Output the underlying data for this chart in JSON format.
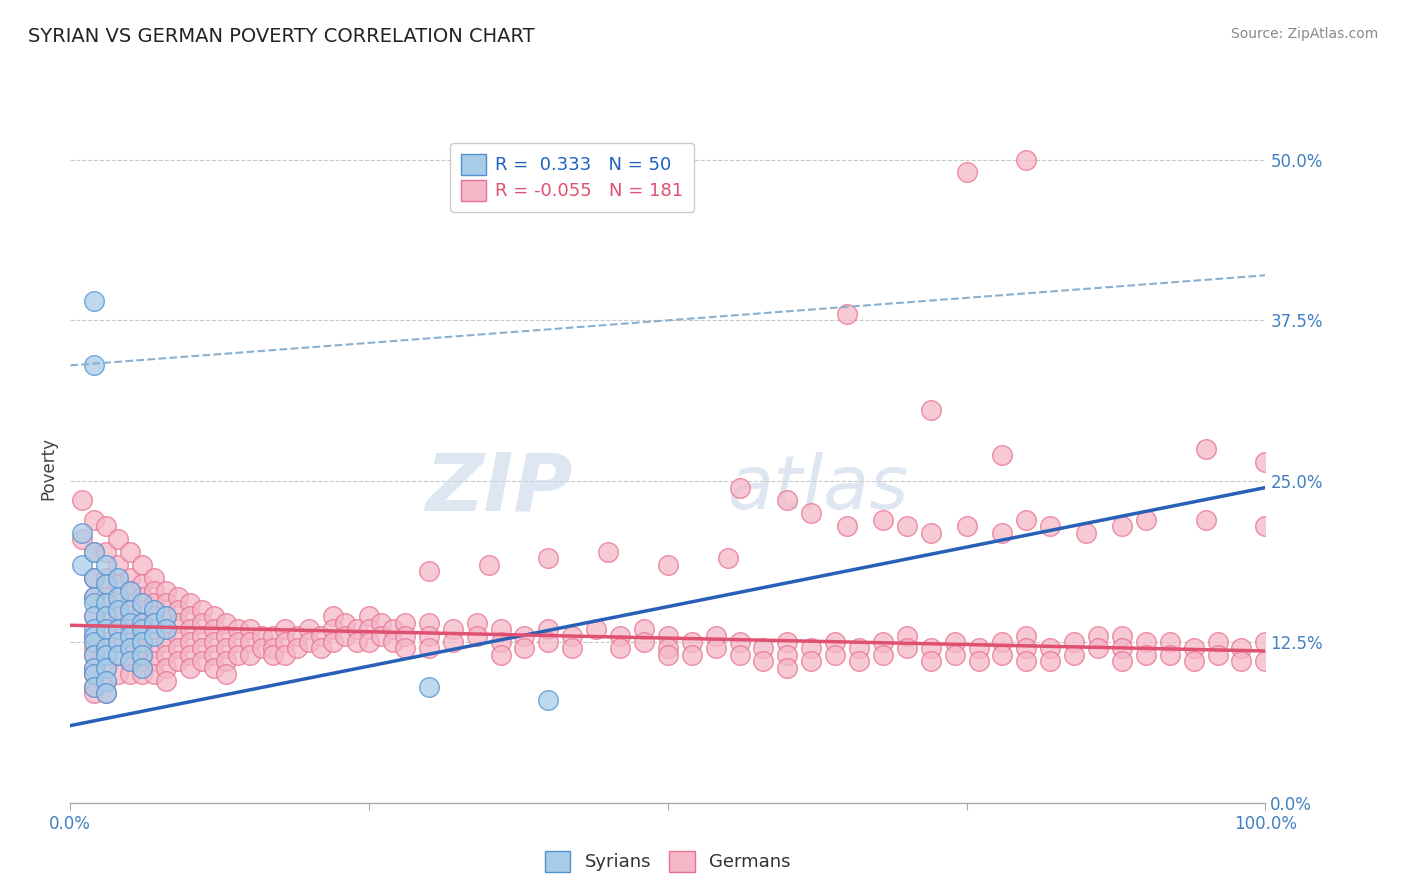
{
  "title": "SYRIAN VS GERMAN POVERTY CORRELATION CHART",
  "source": "Source: ZipAtlas.com",
  "ylabel_label": "Poverty",
  "xlim": [
    0.0,
    1.0
  ],
  "ylim": [
    0.0,
    0.52
  ],
  "syrian_color": "#a8cce8",
  "german_color": "#f4b8c8",
  "syrian_edge_color": "#5090d0",
  "german_edge_color": "#e87090",
  "syrian_line_color": "#2860b8",
  "german_line_color": "#e05070",
  "dashed_line_color": "#8ab0d0",
  "grid_color": "#c8c8c8",
  "background_color": "#ffffff",
  "r_syrian": 0.333,
  "n_syrian": 50,
  "r_german": -0.055,
  "n_german": 181,
  "watermark_zip": "ZIP",
  "watermark_atlas": "atlas",
  "y_tick_positions": [
    0.0,
    0.125,
    0.25,
    0.375,
    0.5
  ],
  "y_tick_labels": [
    "0.0%",
    "12.5%",
    "25.0%",
    "37.5%",
    "50.0%"
  ],
  "x_tick_positions": [
    0.0,
    0.25,
    0.5,
    0.75,
    1.0
  ],
  "x_tick_labels": [
    "0.0%",
    "",
    "",
    "",
    "100.0%"
  ],
  "syrian_trend_x": [
    0.0,
    1.0
  ],
  "syrian_trend_y": [
    0.06,
    0.245
  ],
  "german_trend_x": [
    0.0,
    1.0
  ],
  "german_trend_y": [
    0.138,
    0.118
  ],
  "dashed_trend_x": [
    0.0,
    1.0
  ],
  "dashed_trend_y": [
    0.34,
    0.41
  ],
  "syrian_scatter": [
    [
      0.01,
      0.21
    ],
    [
      0.01,
      0.185
    ],
    [
      0.02,
      0.195
    ],
    [
      0.02,
      0.175
    ],
    [
      0.02,
      0.16
    ],
    [
      0.02,
      0.155
    ],
    [
      0.02,
      0.145
    ],
    [
      0.02,
      0.135
    ],
    [
      0.02,
      0.13
    ],
    [
      0.02,
      0.125
    ],
    [
      0.02,
      0.115
    ],
    [
      0.02,
      0.105
    ],
    [
      0.02,
      0.1
    ],
    [
      0.02,
      0.09
    ],
    [
      0.03,
      0.185
    ],
    [
      0.03,
      0.17
    ],
    [
      0.03,
      0.155
    ],
    [
      0.03,
      0.145
    ],
    [
      0.03,
      0.135
    ],
    [
      0.03,
      0.12
    ],
    [
      0.03,
      0.115
    ],
    [
      0.03,
      0.105
    ],
    [
      0.03,
      0.095
    ],
    [
      0.03,
      0.085
    ],
    [
      0.04,
      0.175
    ],
    [
      0.04,
      0.16
    ],
    [
      0.04,
      0.15
    ],
    [
      0.04,
      0.135
    ],
    [
      0.04,
      0.125
    ],
    [
      0.04,
      0.115
    ],
    [
      0.05,
      0.165
    ],
    [
      0.05,
      0.15
    ],
    [
      0.05,
      0.14
    ],
    [
      0.05,
      0.13
    ],
    [
      0.05,
      0.12
    ],
    [
      0.05,
      0.11
    ],
    [
      0.06,
      0.155
    ],
    [
      0.06,
      0.14
    ],
    [
      0.06,
      0.135
    ],
    [
      0.06,
      0.125
    ],
    [
      0.06,
      0.115
    ],
    [
      0.06,
      0.105
    ],
    [
      0.07,
      0.15
    ],
    [
      0.07,
      0.14
    ],
    [
      0.07,
      0.13
    ],
    [
      0.08,
      0.145
    ],
    [
      0.08,
      0.135
    ],
    [
      0.3,
      0.09
    ],
    [
      0.4,
      0.08
    ],
    [
      0.02,
      0.39
    ],
    [
      0.02,
      0.34
    ]
  ],
  "german_scatter": [
    [
      0.01,
      0.235
    ],
    [
      0.01,
      0.205
    ],
    [
      0.02,
      0.22
    ],
    [
      0.02,
      0.195
    ],
    [
      0.02,
      0.175
    ],
    [
      0.02,
      0.16
    ],
    [
      0.02,
      0.145
    ],
    [
      0.02,
      0.13
    ],
    [
      0.02,
      0.12
    ],
    [
      0.02,
      0.115
    ],
    [
      0.02,
      0.105
    ],
    [
      0.02,
      0.1
    ],
    [
      0.02,
      0.09
    ],
    [
      0.02,
      0.085
    ],
    [
      0.03,
      0.215
    ],
    [
      0.03,
      0.195
    ],
    [
      0.03,
      0.175
    ],
    [
      0.03,
      0.16
    ],
    [
      0.03,
      0.145
    ],
    [
      0.03,
      0.135
    ],
    [
      0.03,
      0.125
    ],
    [
      0.03,
      0.115
    ],
    [
      0.03,
      0.105
    ],
    [
      0.03,
      0.095
    ],
    [
      0.03,
      0.085
    ],
    [
      0.04,
      0.205
    ],
    [
      0.04,
      0.185
    ],
    [
      0.04,
      0.17
    ],
    [
      0.04,
      0.155
    ],
    [
      0.04,
      0.145
    ],
    [
      0.04,
      0.135
    ],
    [
      0.04,
      0.125
    ],
    [
      0.04,
      0.115
    ],
    [
      0.04,
      0.1
    ],
    [
      0.05,
      0.195
    ],
    [
      0.05,
      0.175
    ],
    [
      0.05,
      0.165
    ],
    [
      0.05,
      0.155
    ],
    [
      0.05,
      0.145
    ],
    [
      0.05,
      0.135
    ],
    [
      0.05,
      0.12
    ],
    [
      0.05,
      0.11
    ],
    [
      0.05,
      0.1
    ],
    [
      0.06,
      0.185
    ],
    [
      0.06,
      0.17
    ],
    [
      0.06,
      0.16
    ],
    [
      0.06,
      0.15
    ],
    [
      0.06,
      0.14
    ],
    [
      0.06,
      0.13
    ],
    [
      0.06,
      0.12
    ],
    [
      0.06,
      0.11
    ],
    [
      0.06,
      0.1
    ],
    [
      0.07,
      0.175
    ],
    [
      0.07,
      0.165
    ],
    [
      0.07,
      0.155
    ],
    [
      0.07,
      0.145
    ],
    [
      0.07,
      0.135
    ],
    [
      0.07,
      0.12
    ],
    [
      0.07,
      0.11
    ],
    [
      0.07,
      0.1
    ],
    [
      0.08,
      0.165
    ],
    [
      0.08,
      0.155
    ],
    [
      0.08,
      0.145
    ],
    [
      0.08,
      0.135
    ],
    [
      0.08,
      0.125
    ],
    [
      0.08,
      0.115
    ],
    [
      0.08,
      0.105
    ],
    [
      0.08,
      0.095
    ],
    [
      0.09,
      0.16
    ],
    [
      0.09,
      0.15
    ],
    [
      0.09,
      0.14
    ],
    [
      0.09,
      0.13
    ],
    [
      0.09,
      0.12
    ],
    [
      0.09,
      0.11
    ],
    [
      0.1,
      0.155
    ],
    [
      0.1,
      0.145
    ],
    [
      0.1,
      0.135
    ],
    [
      0.1,
      0.125
    ],
    [
      0.1,
      0.115
    ],
    [
      0.1,
      0.105
    ],
    [
      0.11,
      0.15
    ],
    [
      0.11,
      0.14
    ],
    [
      0.11,
      0.13
    ],
    [
      0.11,
      0.12
    ],
    [
      0.11,
      0.11
    ],
    [
      0.12,
      0.145
    ],
    [
      0.12,
      0.135
    ],
    [
      0.12,
      0.125
    ],
    [
      0.12,
      0.115
    ],
    [
      0.12,
      0.105
    ],
    [
      0.13,
      0.14
    ],
    [
      0.13,
      0.13
    ],
    [
      0.13,
      0.12
    ],
    [
      0.13,
      0.11
    ],
    [
      0.13,
      0.1
    ],
    [
      0.14,
      0.135
    ],
    [
      0.14,
      0.125
    ],
    [
      0.14,
      0.115
    ],
    [
      0.15,
      0.135
    ],
    [
      0.15,
      0.125
    ],
    [
      0.15,
      0.115
    ],
    [
      0.16,
      0.13
    ],
    [
      0.16,
      0.12
    ],
    [
      0.17,
      0.13
    ],
    [
      0.17,
      0.12
    ],
    [
      0.17,
      0.115
    ],
    [
      0.18,
      0.135
    ],
    [
      0.18,
      0.125
    ],
    [
      0.18,
      0.115
    ],
    [
      0.19,
      0.13
    ],
    [
      0.19,
      0.12
    ],
    [
      0.2,
      0.135
    ],
    [
      0.2,
      0.125
    ],
    [
      0.21,
      0.13
    ],
    [
      0.21,
      0.12
    ],
    [
      0.22,
      0.145
    ],
    [
      0.22,
      0.135
    ],
    [
      0.22,
      0.125
    ],
    [
      0.23,
      0.14
    ],
    [
      0.23,
      0.13
    ],
    [
      0.24,
      0.135
    ],
    [
      0.24,
      0.125
    ],
    [
      0.25,
      0.145
    ],
    [
      0.25,
      0.135
    ],
    [
      0.25,
      0.125
    ],
    [
      0.26,
      0.14
    ],
    [
      0.26,
      0.13
    ],
    [
      0.27,
      0.135
    ],
    [
      0.27,
      0.125
    ],
    [
      0.28,
      0.14
    ],
    [
      0.28,
      0.13
    ],
    [
      0.28,
      0.12
    ],
    [
      0.3,
      0.14
    ],
    [
      0.3,
      0.13
    ],
    [
      0.3,
      0.12
    ],
    [
      0.32,
      0.135
    ],
    [
      0.32,
      0.125
    ],
    [
      0.34,
      0.14
    ],
    [
      0.34,
      0.13
    ],
    [
      0.36,
      0.135
    ],
    [
      0.36,
      0.125
    ],
    [
      0.36,
      0.115
    ],
    [
      0.38,
      0.13
    ],
    [
      0.38,
      0.12
    ],
    [
      0.4,
      0.135
    ],
    [
      0.4,
      0.125
    ],
    [
      0.42,
      0.13
    ],
    [
      0.42,
      0.12
    ],
    [
      0.44,
      0.135
    ],
    [
      0.46,
      0.13
    ],
    [
      0.46,
      0.12
    ],
    [
      0.48,
      0.135
    ],
    [
      0.48,
      0.125
    ],
    [
      0.5,
      0.13
    ],
    [
      0.5,
      0.12
    ],
    [
      0.5,
      0.115
    ],
    [
      0.52,
      0.125
    ],
    [
      0.52,
      0.115
    ],
    [
      0.54,
      0.13
    ],
    [
      0.54,
      0.12
    ],
    [
      0.56,
      0.125
    ],
    [
      0.56,
      0.115
    ],
    [
      0.58,
      0.12
    ],
    [
      0.58,
      0.11
    ],
    [
      0.6,
      0.125
    ],
    [
      0.6,
      0.115
    ],
    [
      0.6,
      0.105
    ],
    [
      0.62,
      0.12
    ],
    [
      0.62,
      0.11
    ],
    [
      0.64,
      0.125
    ],
    [
      0.64,
      0.115
    ],
    [
      0.66,
      0.12
    ],
    [
      0.66,
      0.11
    ],
    [
      0.68,
      0.125
    ],
    [
      0.68,
      0.115
    ],
    [
      0.7,
      0.13
    ],
    [
      0.7,
      0.12
    ],
    [
      0.72,
      0.12
    ],
    [
      0.72,
      0.11
    ],
    [
      0.74,
      0.125
    ],
    [
      0.74,
      0.115
    ],
    [
      0.76,
      0.12
    ],
    [
      0.76,
      0.11
    ],
    [
      0.78,
      0.125
    ],
    [
      0.78,
      0.115
    ],
    [
      0.8,
      0.13
    ],
    [
      0.8,
      0.12
    ],
    [
      0.8,
      0.11
    ],
    [
      0.82,
      0.12
    ],
    [
      0.82,
      0.11
    ],
    [
      0.84,
      0.125
    ],
    [
      0.84,
      0.115
    ],
    [
      0.86,
      0.13
    ],
    [
      0.86,
      0.12
    ],
    [
      0.88,
      0.13
    ],
    [
      0.88,
      0.12
    ],
    [
      0.88,
      0.11
    ],
    [
      0.9,
      0.125
    ],
    [
      0.9,
      0.115
    ],
    [
      0.92,
      0.125
    ],
    [
      0.92,
      0.115
    ],
    [
      0.94,
      0.12
    ],
    [
      0.94,
      0.11
    ],
    [
      0.96,
      0.125
    ],
    [
      0.96,
      0.115
    ],
    [
      0.98,
      0.12
    ],
    [
      0.98,
      0.11
    ],
    [
      1.0,
      0.125
    ],
    [
      1.0,
      0.11
    ],
    [
      0.75,
      0.49
    ],
    [
      0.8,
      0.5
    ],
    [
      0.65,
      0.38
    ],
    [
      0.72,
      0.305
    ],
    [
      0.78,
      0.27
    ],
    [
      0.56,
      0.245
    ],
    [
      0.6,
      0.235
    ],
    [
      0.62,
      0.225
    ],
    [
      0.65,
      0.215
    ],
    [
      0.68,
      0.22
    ],
    [
      0.7,
      0.215
    ],
    [
      0.72,
      0.21
    ],
    [
      0.75,
      0.215
    ],
    [
      0.78,
      0.21
    ],
    [
      0.8,
      0.22
    ],
    [
      0.82,
      0.215
    ],
    [
      0.85,
      0.21
    ],
    [
      0.88,
      0.215
    ],
    [
      0.9,
      0.22
    ],
    [
      0.95,
      0.22
    ],
    [
      1.0,
      0.215
    ],
    [
      0.95,
      0.275
    ],
    [
      1.0,
      0.265
    ],
    [
      0.3,
      0.18
    ],
    [
      0.35,
      0.185
    ],
    [
      0.4,
      0.19
    ],
    [
      0.45,
      0.195
    ],
    [
      0.5,
      0.185
    ],
    [
      0.55,
      0.19
    ]
  ]
}
